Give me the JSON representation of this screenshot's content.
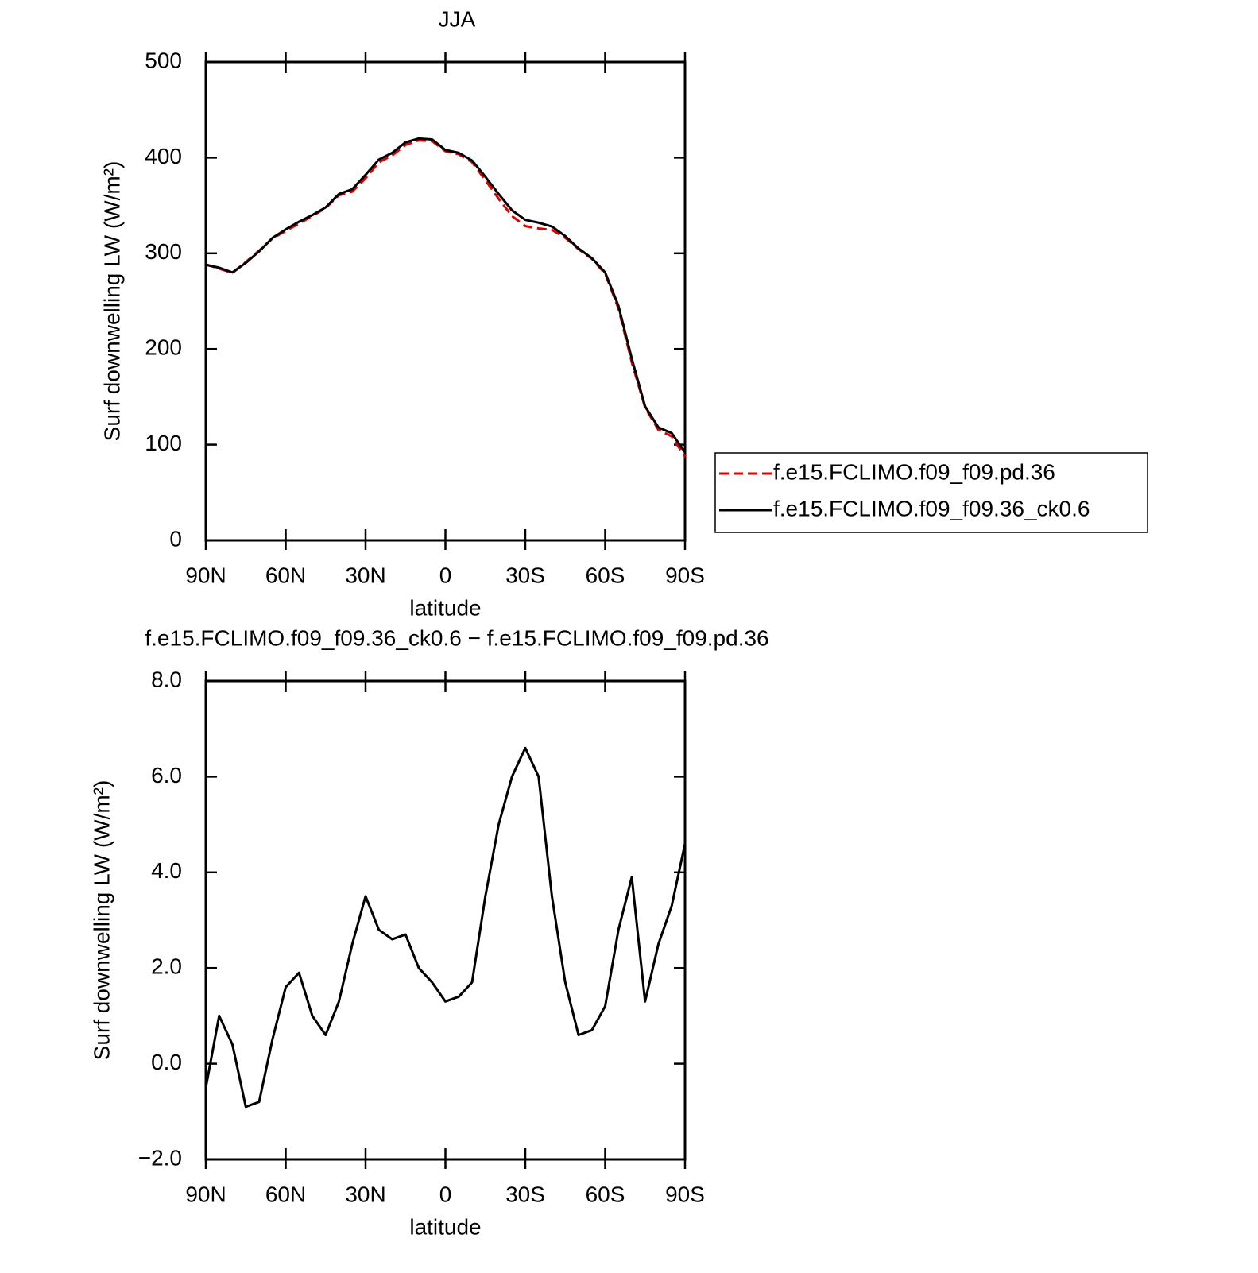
{
  "chart_data": [
    {
      "type": "line",
      "title": "JJA",
      "xlabel": "latitude",
      "ylabel": "Surf downwelling LW (W/m²)",
      "x": [
        90,
        85,
        80,
        75,
        70,
        65,
        60,
        55,
        50,
        45,
        40,
        35,
        30,
        25,
        20,
        15,
        10,
        5,
        0,
        -5,
        -10,
        -15,
        -20,
        -25,
        -30,
        -35,
        -40,
        -45,
        -50,
        -55,
        -60,
        -65,
        -70,
        -75,
        -80,
        -85,
        -90
      ],
      "series": [
        {
          "name": "f.e15.FCLIMO.f09_f09.pd.36",
          "color": "#e00000",
          "line_style": "dashed",
          "values": [
            288.5,
            284,
            279.6,
            290.9,
            302.8,
            315.5,
            323.4,
            331.1,
            339,
            347.4,
            360.7,
            364.5,
            378.5,
            395.2,
            402.4,
            413.3,
            418,
            417.3,
            406.7,
            403.6,
            395.3,
            376.5,
            357,
            339,
            328.4,
            326,
            324.5,
            316.3,
            304.4,
            294.3,
            278.8,
            242.2,
            186.1,
            138.7,
            115.5,
            108.7,
            87.4
          ]
        },
        {
          "name": "f.e15.FCLIMO.f09_f09.36_ck0.6",
          "color": "#000000",
          "line_style": "solid",
          "values": [
            288,
            285,
            280,
            290,
            302,
            316,
            325,
            333,
            340,
            348,
            362,
            367,
            382,
            398,
            405,
            416,
            420,
            419,
            408,
            405,
            397,
            380,
            362,
            345,
            335,
            332,
            328,
            318,
            305,
            295,
            280,
            245,
            190,
            140,
            118,
            112,
            92
          ]
        }
      ],
      "xlim": [
        90,
        -90
      ],
      "xticks": [
        {
          "value": 90,
          "label": "90N"
        },
        {
          "value": 60,
          "label": "60N"
        },
        {
          "value": 30,
          "label": "30N"
        },
        0,
        {
          "value": -30,
          "label": "30S"
        },
        {
          "value": -60,
          "label": "60S"
        },
        {
          "value": -90,
          "label": "90S"
        }
      ],
      "ylim": [
        0,
        500
      ],
      "yticks": [
        0,
        100,
        200,
        300,
        400,
        500
      ],
      "legend": "right"
    },
    {
      "type": "line",
      "title": "f.e15.FCLIMO.f09_f09.36_ck0.6 − f.e15.FCLIMO.f09_f09.pd.36",
      "xlabel": "latitude",
      "ylabel": "Surf downwelling LW (W/m²)",
      "x": [
        90,
        85,
        80,
        75,
        70,
        65,
        60,
        55,
        50,
        45,
        40,
        35,
        30,
        25,
        20,
        15,
        10,
        5,
        0,
        -5,
        -10,
        -15,
        -20,
        -25,
        -30,
        -35,
        -40,
        -45,
        -50,
        -55,
        -60,
        -65,
        -70,
        -75,
        -80,
        -85,
        -90
      ],
      "series": [
        {
          "color": "#000000",
          "line_style": "solid",
          "values": [
            -0.5,
            1.0,
            0.4,
            -0.9,
            -0.8,
            0.5,
            1.6,
            1.9,
            1.0,
            0.6,
            1.3,
            2.5,
            3.5,
            2.8,
            2.6,
            2.7,
            2.0,
            1.7,
            1.3,
            1.4,
            1.7,
            3.5,
            5.0,
            6.0,
            6.6,
            6.0,
            3.5,
            1.7,
            0.6,
            0.7,
            1.2,
            2.8,
            3.9,
            1.3,
            2.5,
            3.3,
            4.6
          ]
        }
      ],
      "xlim": [
        90,
        -90
      ],
      "xticks": [
        {
          "value": 90,
          "label": "90N"
        },
        {
          "value": 60,
          "label": "60N"
        },
        {
          "value": 30,
          "label": "30N"
        },
        0,
        {
          "value": -30,
          "label": "30S"
        },
        {
          "value": -60,
          "label": "60S"
        },
        {
          "value": -90,
          "label": "90S"
        }
      ],
      "ylim": [
        -2,
        8
      ],
      "yticks": [
        {
          "value": -2,
          "label": "−2.0"
        },
        {
          "value": 0,
          "label": "0.0"
        },
        {
          "value": 2,
          "label": "2.0"
        },
        {
          "value": 4,
          "label": "4.0"
        },
        {
          "value": 6,
          "label": "6.0"
        },
        {
          "value": 8,
          "label": "8.0"
        }
      ]
    }
  ]
}
